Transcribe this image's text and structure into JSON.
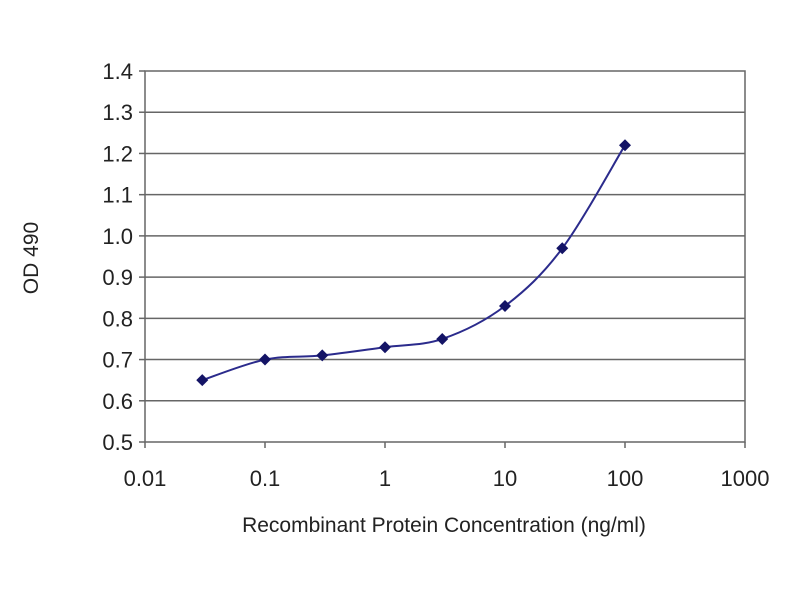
{
  "chart_data": {
    "type": "line",
    "title": "",
    "xlabel": "Recombinant Protein Concentration (ng/ml)",
    "ylabel": "OD 490",
    "x_scale": "log",
    "xlim": [
      0.01,
      1000
    ],
    "ylim": [
      0.5,
      1.4
    ],
    "x_ticks": [
      "0.01",
      "0.1",
      "1",
      "10",
      "100",
      "1000"
    ],
    "y_ticks": [
      "1.4",
      "1.3",
      "1.2",
      "1.1",
      "1.0",
      "0.9",
      "0.8",
      "0.7",
      "0.6",
      "0.5"
    ],
    "grid": "horizontal",
    "legend": "none",
    "series": [
      {
        "x": [
          0.03,
          0.1,
          0.3,
          1,
          3,
          10,
          30,
          100
        ],
        "y": [
          0.65,
          0.7,
          0.71,
          0.73,
          0.75,
          0.83,
          0.97,
          1.22
        ]
      }
    ],
    "colors": {
      "line": "#2b2b8c",
      "marker": "#141466",
      "grid": "#666666",
      "frame": "#666666"
    }
  }
}
